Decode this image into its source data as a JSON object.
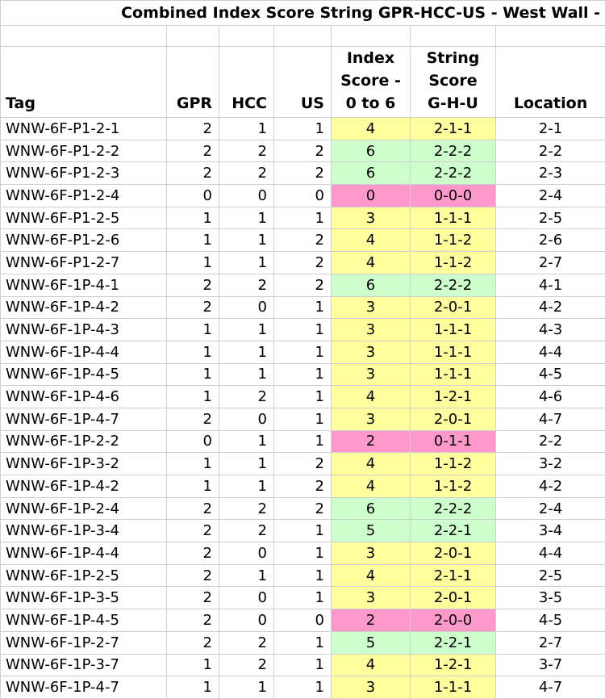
{
  "title": "Combined Index Score String GPR-HCC-US - West Wall -",
  "headers": {
    "tag": "Tag",
    "gpr": "GPR",
    "hcc": "HCC",
    "us": "US",
    "index_score": [
      "Index",
      "Score -",
      "0 to 6"
    ],
    "string_score": [
      "String",
      "Score",
      "G-H-U"
    ],
    "location": "Location"
  },
  "colors": {
    "yellow": "#ffff9e",
    "green": "#ccffcc",
    "pink": "#ff99cc"
  },
  "rows": [
    {
      "tag": "WNW-6F-P1-2-1",
      "gpr": "2",
      "hcc": "1",
      "us": "1",
      "index": "4",
      "string": "2-1-1",
      "location": "2-1",
      "color": "yellow"
    },
    {
      "tag": "WNW-6F-P1-2-2",
      "gpr": "2",
      "hcc": "2",
      "us": "2",
      "index": "6",
      "string": "2-2-2",
      "location": "2-2",
      "color": "green"
    },
    {
      "tag": "WNW-6F-P1-2-3",
      "gpr": "2",
      "hcc": "2",
      "us": "2",
      "index": "6",
      "string": "2-2-2",
      "location": "2-3",
      "color": "green"
    },
    {
      "tag": "WNW-6F-P1-2-4",
      "gpr": "0",
      "hcc": "0",
      "us": "0",
      "index": "0",
      "string": "0-0-0",
      "location": "2-4",
      "color": "pink"
    },
    {
      "tag": "WNW-6F-P1-2-5",
      "gpr": "1",
      "hcc": "1",
      "us": "1",
      "index": "3",
      "string": "1-1-1",
      "location": "2-5",
      "color": "yellow"
    },
    {
      "tag": "WNW-6F-P1-2-6",
      "gpr": "1",
      "hcc": "1",
      "us": "2",
      "index": "4",
      "string": "1-1-2",
      "location": "2-6",
      "color": "yellow"
    },
    {
      "tag": "WNW-6F-P1-2-7",
      "gpr": "1",
      "hcc": "1",
      "us": "2",
      "index": "4",
      "string": "1-1-2",
      "location": "2-7",
      "color": "yellow"
    },
    {
      "tag": "WNW-6F-1P-4-1",
      "gpr": "2",
      "hcc": "2",
      "us": "2",
      "index": "6",
      "string": "2-2-2",
      "location": "4-1",
      "color": "green"
    },
    {
      "tag": "WNW-6F-1P-4-2",
      "gpr": "2",
      "hcc": "0",
      "us": "1",
      "index": "3",
      "string": "2-0-1",
      "location": "4-2",
      "color": "yellow"
    },
    {
      "tag": "WNW-6F-1P-4-3",
      "gpr": "1",
      "hcc": "1",
      "us": "1",
      "index": "3",
      "string": "1-1-1",
      "location": "4-3",
      "color": "yellow"
    },
    {
      "tag": "WNW-6F-1P-4-4",
      "gpr": "1",
      "hcc": "1",
      "us": "1",
      "index": "3",
      "string": "1-1-1",
      "location": "4-4",
      "color": "yellow"
    },
    {
      "tag": "WNW-6F-1P-4-5",
      "gpr": "1",
      "hcc": "1",
      "us": "1",
      "index": "3",
      "string": "1-1-1",
      "location": "4-5",
      "color": "yellow"
    },
    {
      "tag": "WNW-6F-1P-4-6",
      "gpr": "1",
      "hcc": "2",
      "us": "1",
      "index": "4",
      "string": "1-2-1",
      "location": "4-6",
      "color": "yellow"
    },
    {
      "tag": "WNW-6F-1P-4-7",
      "gpr": "2",
      "hcc": "0",
      "us": "1",
      "index": "3",
      "string": "2-0-1",
      "location": "4-7",
      "color": "yellow"
    },
    {
      "tag": "WNW-6F-1P-2-2",
      "gpr": "0",
      "hcc": "1",
      "us": "1",
      "index": "2",
      "string": "0-1-1",
      "location": "2-2",
      "color": "pink"
    },
    {
      "tag": "WNW-6F-1P-3-2",
      "gpr": "1",
      "hcc": "1",
      "us": "2",
      "index": "4",
      "string": "1-1-2",
      "location": "3-2",
      "color": "yellow"
    },
    {
      "tag": "WNW-6F-1P-4-2",
      "gpr": "1",
      "hcc": "1",
      "us": "2",
      "index": "4",
      "string": "1-1-2",
      "location": "4-2",
      "color": "yellow"
    },
    {
      "tag": "WNW-6F-1P-2-4",
      "gpr": "2",
      "hcc": "2",
      "us": "2",
      "index": "6",
      "string": "2-2-2",
      "location": "2-4",
      "color": "green"
    },
    {
      "tag": "WNW-6F-1P-3-4",
      "gpr": "2",
      "hcc": "2",
      "us": "1",
      "index": "5",
      "string": "2-2-1",
      "location": "3-4",
      "color": "green"
    },
    {
      "tag": "WNW-6F-1P-4-4",
      "gpr": "2",
      "hcc": "0",
      "us": "1",
      "index": "3",
      "string": "2-0-1",
      "location": "4-4",
      "color": "yellow"
    },
    {
      "tag": "WNW-6F-1P-2-5",
      "gpr": "2",
      "hcc": "1",
      "us": "1",
      "index": "4",
      "string": "2-1-1",
      "location": "2-5",
      "color": "yellow"
    },
    {
      "tag": "WNW-6F-1P-3-5",
      "gpr": "2",
      "hcc": "0",
      "us": "1",
      "index": "3",
      "string": "2-0-1",
      "location": "3-5",
      "color": "yellow"
    },
    {
      "tag": "WNW-6F-1P-4-5",
      "gpr": "2",
      "hcc": "0",
      "us": "0",
      "index": "2",
      "string": "2-0-0",
      "location": "4-5",
      "color": "pink"
    },
    {
      "tag": "WNW-6F-1P-2-7",
      "gpr": "2",
      "hcc": "2",
      "us": "1",
      "index": "5",
      "string": "2-2-1",
      "location": "2-7",
      "color": "green"
    },
    {
      "tag": "WNW-6F-1P-3-7",
      "gpr": "1",
      "hcc": "2",
      "us": "1",
      "index": "4",
      "string": "1-2-1",
      "location": "3-7",
      "color": "yellow"
    },
    {
      "tag": "WNW-6F-1P-4-7",
      "gpr": "1",
      "hcc": "1",
      "us": "1",
      "index": "3",
      "string": "1-1-1",
      "location": "4-7",
      "color": "yellow"
    }
  ]
}
